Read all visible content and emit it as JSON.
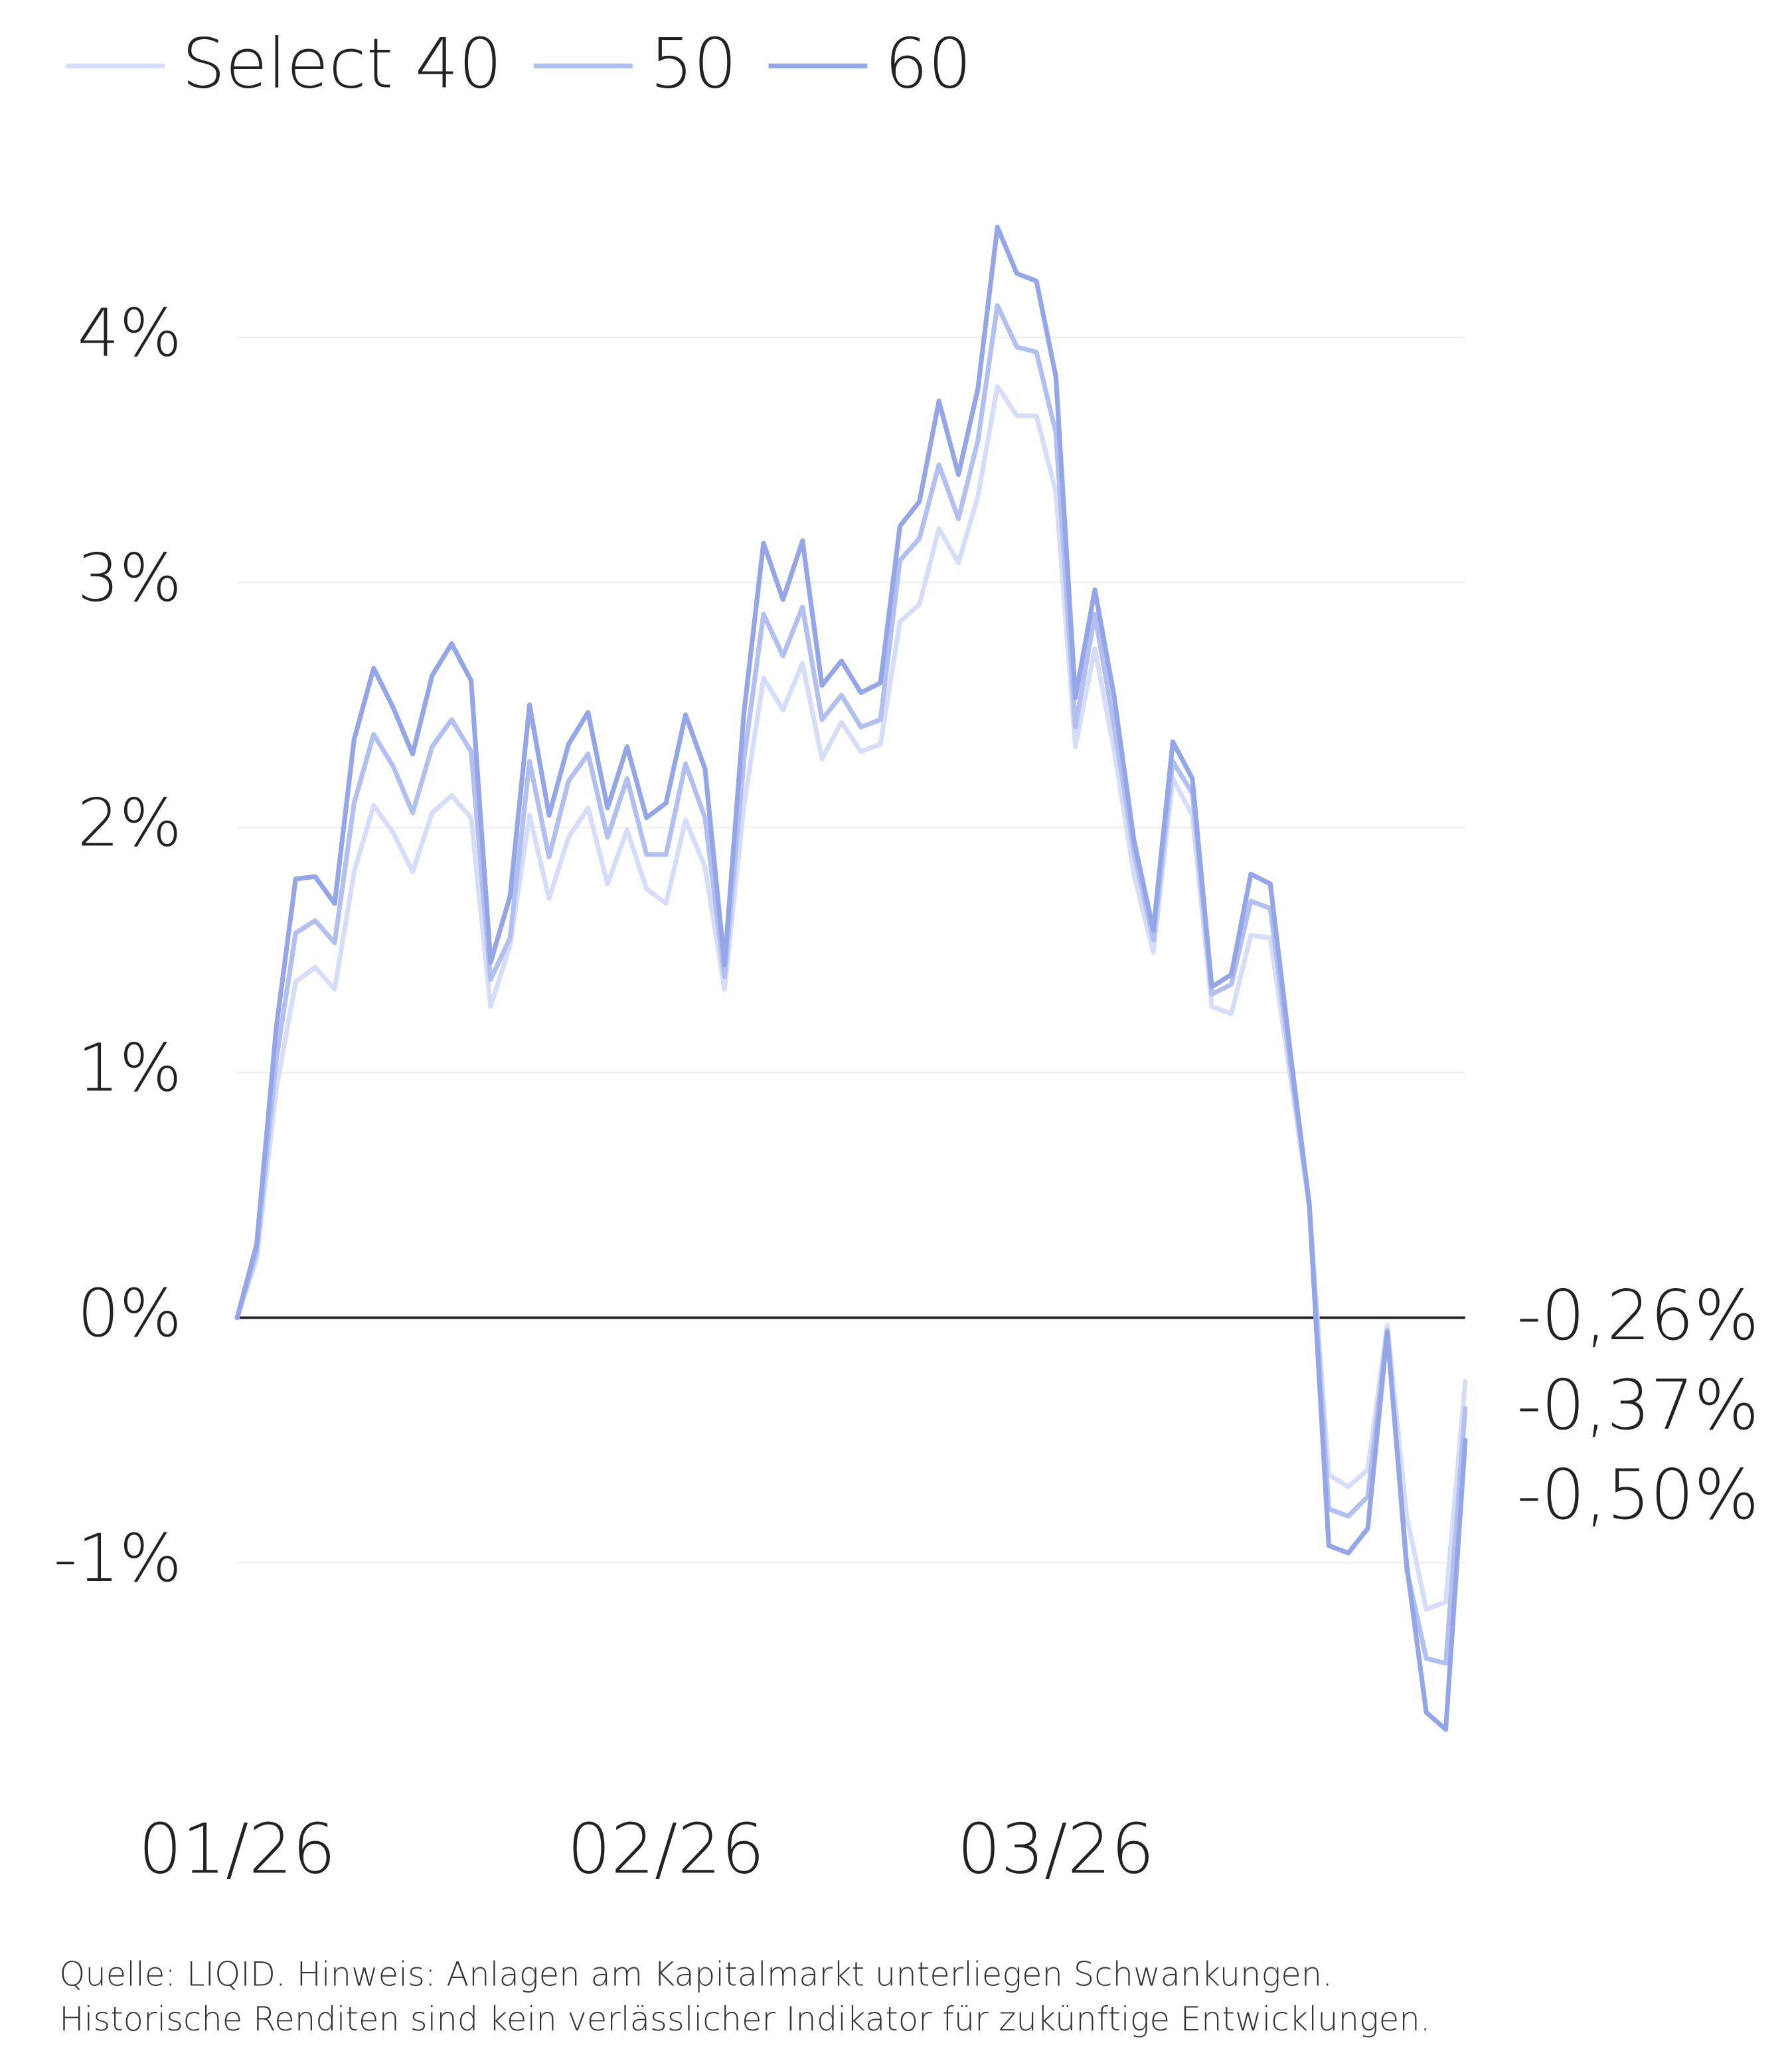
{
  "chart_data": {
    "type": "line",
    "categories": [
      "01/26",
      null,
      null,
      null,
      null,
      null,
      null,
      null,
      null,
      null,
      null,
      null,
      null,
      null,
      null,
      null,
      null,
      null,
      null,
      null,
      null,
      null,
      "02/26",
      null,
      null,
      null,
      null,
      null,
      null,
      null,
      null,
      null,
      null,
      null,
      null,
      null,
      null,
      null,
      null,
      null,
      null,
      null,
      "03/26",
      null,
      null,
      null,
      null,
      null,
      null,
      null,
      null,
      null,
      null,
      null,
      null,
      null,
      null,
      null,
      null,
      null,
      null,
      null,
      null,
      null
    ],
    "series": [
      {
        "name": "Select 40",
        "color": "#d6ddf8",
        "values": [
          0,
          0.24,
          0.93,
          1.37,
          1.43,
          1.34,
          1.82,
          2.09,
          1.98,
          1.82,
          2.06,
          2.13,
          2.04,
          1.27,
          1.52,
          2.05,
          1.71,
          1.96,
          2.08,
          1.77,
          1.99,
          1.75,
          1.69,
          2.03,
          1.84,
          1.34,
          2.09,
          2.61,
          2.48,
          2.67,
          2.28,
          2.43,
          2.31,
          2.34,
          2.84,
          2.91,
          3.22,
          3.08,
          3.35,
          3.8,
          3.68,
          3.68,
          3.37,
          2.33,
          2.73,
          2.31,
          1.81,
          1.49,
          2.2,
          2.05,
          1.27,
          1.24,
          1.56,
          1.55,
          1.0,
          0.45,
          -0.64,
          -0.69,
          -0.62,
          -0.03,
          -0.81,
          -1.19,
          -1.16,
          -0.26
        ],
        "value_labels": [
          null,
          null,
          null,
          null,
          null,
          null,
          null,
          null,
          null,
          null,
          null,
          null,
          null,
          null,
          null,
          null,
          null,
          null,
          null,
          null,
          null,
          null,
          null,
          null,
          null,
          null,
          null,
          null,
          null,
          null,
          null,
          null,
          null,
          null,
          null,
          null,
          null,
          null,
          null,
          null,
          null,
          null,
          null,
          null,
          null,
          null,
          null,
          null,
          null,
          null,
          null,
          null,
          null,
          null,
          null,
          null,
          null,
          null,
          null,
          null,
          null,
          null,
          null,
          "-0,26%"
        ]
      },
      {
        "name": "50",
        "color": "#b2c0f1",
        "values": [
          0,
          0.27,
          1.05,
          1.57,
          1.62,
          1.53,
          2.1,
          2.38,
          2.25,
          2.06,
          2.33,
          2.44,
          2.31,
          1.38,
          1.55,
          2.27,
          1.88,
          2.19,
          2.3,
          1.96,
          2.2,
          1.89,
          1.89,
          2.26,
          2.04,
          1.39,
          2.28,
          2.87,
          2.7,
          2.9,
          2.44,
          2.54,
          2.41,
          2.44,
          3.09,
          3.18,
          3.48,
          3.26,
          3.58,
          4.13,
          3.96,
          3.94,
          3.61,
          2.41,
          2.87,
          2.41,
          1.9,
          1.54,
          2.27,
          2.14,
          1.32,
          1.36,
          1.7,
          1.67,
          1.05,
          0.47,
          -0.78,
          -0.81,
          -0.73,
          -0.05,
          -1.03,
          -1.39,
          -1.41,
          -0.37
        ],
        "value_labels": [
          null,
          null,
          null,
          null,
          null,
          null,
          null,
          null,
          null,
          null,
          null,
          null,
          null,
          null,
          null,
          null,
          null,
          null,
          null,
          null,
          null,
          null,
          null,
          null,
          null,
          null,
          null,
          null,
          null,
          null,
          null,
          null,
          null,
          null,
          null,
          null,
          null,
          null,
          null,
          null,
          null,
          null,
          null,
          null,
          null,
          null,
          null,
          null,
          null,
          null,
          null,
          null,
          null,
          null,
          null,
          null,
          null,
          null,
          null,
          null,
          null,
          null,
          null,
          "-0,37%"
        ]
      },
      {
        "name": "60",
        "color": "#94a6e8",
        "values": [
          0,
          0.3,
          1.18,
          1.79,
          1.8,
          1.69,
          2.36,
          2.65,
          2.49,
          2.3,
          2.62,
          2.75,
          2.6,
          1.45,
          1.72,
          2.5,
          2.05,
          2.34,
          2.47,
          2.08,
          2.33,
          2.04,
          2.1,
          2.46,
          2.24,
          1.44,
          2.47,
          3.16,
          2.93,
          3.17,
          2.58,
          2.68,
          2.55,
          2.59,
          3.23,
          3.33,
          3.74,
          3.44,
          3.79,
          4.45,
          4.26,
          4.23,
          3.84,
          2.53,
          2.97,
          2.53,
          1.95,
          1.58,
          2.35,
          2.2,
          1.35,
          1.4,
          1.81,
          1.77,
          1.1,
          0.46,
          -0.93,
          -0.96,
          -0.86,
          -0.06,
          -1.01,
          -1.61,
          -1.68,
          -0.5
        ],
        "value_labels": [
          null,
          null,
          null,
          null,
          null,
          null,
          null,
          null,
          null,
          null,
          null,
          null,
          null,
          null,
          null,
          null,
          null,
          null,
          null,
          null,
          null,
          null,
          null,
          null,
          null,
          null,
          null,
          null,
          null,
          null,
          null,
          null,
          null,
          null,
          null,
          null,
          null,
          null,
          null,
          null,
          null,
          null,
          null,
          null,
          null,
          null,
          null,
          null,
          null,
          null,
          null,
          null,
          null,
          null,
          null,
          null,
          null,
          null,
          null,
          null,
          null,
          null,
          null,
          "-0,50%"
        ]
      }
    ],
    "ylim": [
      -1.8,
      4.6
    ],
    "yticks": [
      {
        "value": -1,
        "label": "-1%"
      },
      {
        "value": 0,
        "label": "0%"
      },
      {
        "value": 1,
        "label": "1%"
      },
      {
        "value": 2,
        "label": "2%"
      },
      {
        "value": 3,
        "label": "3%"
      },
      {
        "value": 4,
        "label": "4%"
      }
    ],
    "grid": true,
    "legend": "top-left",
    "notes": [
      "Quelle: LIQID. Hinweis: Anlagen am Kapitalmarkt unterliegen Schwankungen.",
      "Historische Renditen sind kein verlässlicher Indikator für zukünftige Entwicklungen."
    ]
  }
}
